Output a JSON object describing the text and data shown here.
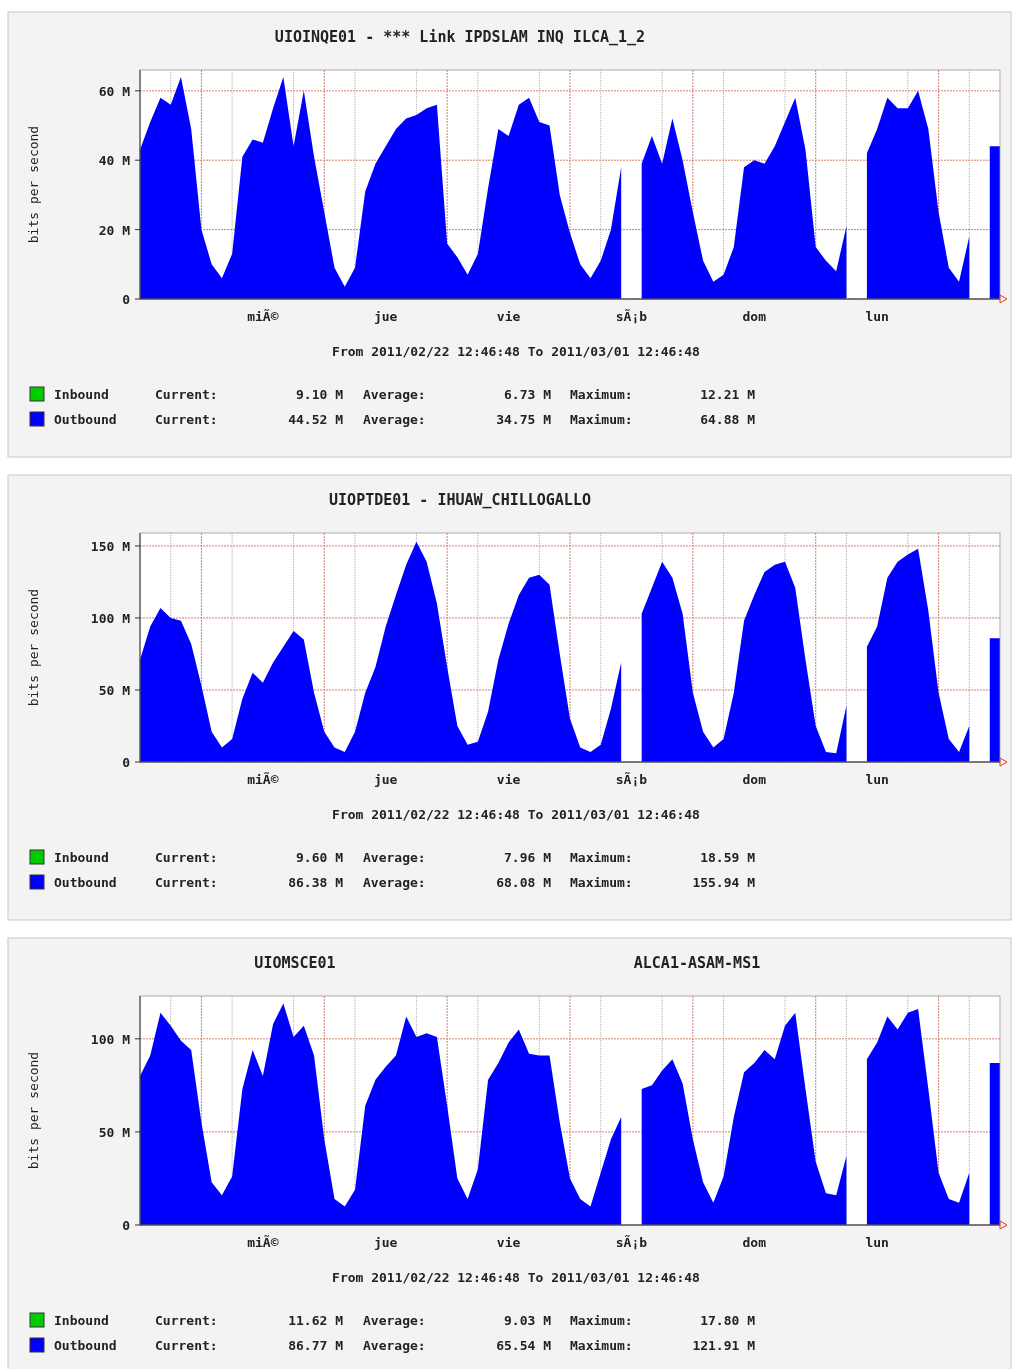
{
  "chart_data": [
    {
      "type": "area",
      "title": "UIOINQE01 - *** Link IPDSLAM INQ ILCA_1_2",
      "ylabel": "bits per second",
      "ylim": [
        0,
        66
      ],
      "categories": [
        null,
        null,
        null,
        null,
        null,
        null,
        null,
        null,
        null,
        null,
        null,
        null,
        "miÃ©",
        null,
        null,
        null,
        null,
        null,
        null,
        null,
        null,
        null,
        null,
        null,
        "jue",
        null,
        null,
        null,
        null,
        null,
        null,
        null,
        null,
        null,
        null,
        null,
        "vie",
        null,
        null,
        null,
        null,
        null,
        null,
        null,
        null,
        null,
        null,
        null,
        "sÃ¡b",
        null,
        null,
        null,
        null,
        null,
        null,
        null,
        null,
        null,
        null,
        null,
        "dom",
        null,
        null,
        null,
        null,
        null,
        null,
        null,
        null,
        null,
        null,
        null,
        "lun",
        null,
        null,
        null,
        null,
        null,
        null,
        null,
        null,
        null,
        null,
        null,
        null
      ],
      "yticks": [
        {
          "value": 0,
          "label": "0"
        },
        {
          "value": 20,
          "label": "20 M"
        },
        {
          "value": 40,
          "label": "40 M"
        },
        {
          "value": 60,
          "label": "60 M"
        }
      ],
      "grid": true,
      "legend": "bottom",
      "series": [
        {
          "name": "Inbound",
          "color": "#00cc00",
          "values": [
            null,
            null,
            null,
            null,
            null,
            null,
            null,
            null,
            null,
            null,
            null,
            null,
            null,
            null,
            null,
            null,
            null,
            null,
            null,
            null,
            null,
            null,
            null,
            null,
            null,
            null,
            null,
            null,
            null,
            null,
            null,
            null,
            null,
            null,
            null,
            null,
            null,
            null,
            null,
            null,
            null,
            null,
            null,
            null,
            null,
            null,
            null,
            null,
            null,
            null,
            null,
            null,
            null,
            null,
            null,
            null,
            null,
            null,
            null,
            null,
            null,
            null,
            null,
            null,
            null,
            null,
            null,
            null,
            null,
            null,
            null,
            null,
            null,
            null,
            null,
            null,
            null,
            null,
            null,
            null,
            null,
            null,
            null,
            null,
            null
          ]
        },
        {
          "name": "Outbound",
          "color": "#0000ff",
          "values": [
            43,
            51,
            58,
            56,
            64,
            49,
            20,
            10,
            6,
            13,
            41,
            46,
            45,
            55,
            64,
            44,
            60,
            41,
            25,
            9,
            3.5,
            9,
            31,
            39,
            44,
            49,
            52,
            53,
            55,
            56,
            16,
            12,
            7,
            13,
            32,
            49,
            47,
            56,
            58,
            51,
            50,
            30,
            19,
            10,
            6,
            11,
            20,
            38,
            null,
            39,
            47,
            39,
            52,
            40,
            25,
            11,
            5,
            7,
            15,
            38,
            40,
            39,
            44,
            51,
            58,
            43,
            15,
            11,
            8,
            21,
            null,
            42,
            49,
            58,
            55,
            55,
            60,
            49,
            25,
            9,
            5,
            18,
            null,
            44,
            44
          ]
        }
      ],
      "annotations": [
        "From 2011/02/22 12:46:48 To 2011/03/01 12:46:48",
        "Current:",
        "9.10 M",
        "Average:",
        "6.73 M",
        "Maximum:",
        "12.21 M",
        "Current:",
        "44.52 M",
        "Average:",
        "34.75 M",
        "Maximum:",
        "64.88 M"
      ]
    },
    {
      "type": "area",
      "title": "UIOPTDE01 - IHUAW_CHILLOGALLO",
      "ylabel": "bits per second",
      "ylim": [
        0,
        159
      ],
      "categories": [
        null,
        null,
        null,
        null,
        null,
        null,
        null,
        null,
        null,
        null,
        null,
        null,
        "miÃ©",
        null,
        null,
        null,
        null,
        null,
        null,
        null,
        null,
        null,
        null,
        null,
        "jue",
        null,
        null,
        null,
        null,
        null,
        null,
        null,
        null,
        null,
        null,
        null,
        "vie",
        null,
        null,
        null,
        null,
        null,
        null,
        null,
        null,
        null,
        null,
        null,
        "sÃ¡b",
        null,
        null,
        null,
        null,
        null,
        null,
        null,
        null,
        null,
        null,
        null,
        "dom",
        null,
        null,
        null,
        null,
        null,
        null,
        null,
        null,
        null,
        null,
        null,
        "lun",
        null,
        null,
        null,
        null,
        null,
        null,
        null,
        null,
        null,
        null,
        null,
        null
      ],
      "yticks": [
        {
          "value": 0,
          "label": "0"
        },
        {
          "value": 50,
          "label": "50 M"
        },
        {
          "value": 100,
          "label": "100 M"
        },
        {
          "value": 150,
          "label": "150 M"
        }
      ],
      "grid": true,
      "legend": "bottom",
      "series": [
        {
          "name": "Inbound",
          "color": "#00cc00",
          "values": [
            null,
            null,
            null,
            null,
            null,
            null,
            null,
            null,
            null,
            null,
            null,
            null,
            null,
            null,
            null,
            null,
            null,
            null,
            null,
            null,
            null,
            null,
            null,
            null,
            null,
            null,
            null,
            null,
            null,
            null,
            null,
            null,
            null,
            null,
            null,
            null,
            null,
            null,
            null,
            null,
            null,
            null,
            null,
            null,
            null,
            null,
            null,
            null,
            null,
            null,
            null,
            null,
            null,
            null,
            null,
            null,
            null,
            null,
            null,
            null,
            null,
            null,
            null,
            null,
            null,
            null,
            null,
            null,
            null,
            null,
            null,
            null,
            null,
            null,
            null,
            null,
            null,
            null,
            null,
            null,
            null,
            null,
            null,
            null,
            null
          ]
        },
        {
          "name": "Outbound",
          "color": "#0000ff",
          "values": [
            71,
            94,
            107,
            100,
            98,
            82,
            53,
            21,
            10,
            16,
            44,
            62,
            55,
            69,
            80,
            91,
            85,
            48,
            21,
            10,
            7,
            21,
            48,
            66,
            94,
            116,
            137,
            153,
            139,
            110,
            66,
            25,
            12,
            14,
            35,
            71,
            96,
            116,
            128,
            130,
            123,
            75,
            30,
            10,
            7,
            12,
            37,
            69,
            null,
            103,
            121,
            139,
            128,
            103,
            48,
            21,
            10,
            16,
            48,
            98,
            116,
            132,
            137,
            139,
            121,
            71,
            25,
            7,
            6,
            39,
            null,
            80,
            94,
            128,
            139,
            144,
            148,
            105,
            48,
            16,
            7,
            25,
            null,
            86,
            86
          ]
        }
      ],
      "annotations": [
        "From 2011/02/22 12:46:48 To 2011/03/01 12:46:48",
        "Current:",
        "9.60 M",
        "Average:",
        "7.96 M",
        "Maximum:",
        "18.59 M",
        "Current:",
        "86.38 M",
        "Average:",
        "68.08 M",
        "Maximum:",
        "155.94 M"
      ]
    },
    {
      "type": "area",
      "title": "UIOMSCE01",
      "subtitle": "ALCA1-ASAM-MS1",
      "ylabel": "bits per second",
      "ylim": [
        0,
        123
      ],
      "categories": [
        null,
        null,
        null,
        null,
        null,
        null,
        null,
        null,
        null,
        null,
        null,
        null,
        "miÃ©",
        null,
        null,
        null,
        null,
        null,
        null,
        null,
        null,
        null,
        null,
        null,
        "jue",
        null,
        null,
        null,
        null,
        null,
        null,
        null,
        null,
        null,
        null,
        null,
        "vie",
        null,
        null,
        null,
        null,
        null,
        null,
        null,
        null,
        null,
        null,
        null,
        "sÃ¡b",
        null,
        null,
        null,
        null,
        null,
        null,
        null,
        null,
        null,
        null,
        null,
        "dom",
        null,
        null,
        null,
        null,
        null,
        null,
        null,
        null,
        null,
        null,
        null,
        "lun",
        null,
        null,
        null,
        null,
        null,
        null,
        null,
        null,
        null,
        null,
        null,
        null
      ],
      "yticks": [
        {
          "value": 0,
          "label": "0"
        },
        {
          "value": 50,
          "label": "50 M"
        },
        {
          "value": 100,
          "label": "100 M"
        }
      ],
      "grid": true,
      "legend": "bottom",
      "series": [
        {
          "name": "Inbound",
          "color": "#00cc00",
          "values": [
            null,
            null,
            null,
            null,
            null,
            null,
            null,
            null,
            null,
            null,
            null,
            null,
            null,
            null,
            null,
            null,
            null,
            null,
            null,
            null,
            null,
            null,
            null,
            null,
            null,
            null,
            null,
            null,
            null,
            null,
            null,
            null,
            null,
            null,
            null,
            null,
            null,
            null,
            null,
            null,
            null,
            null,
            null,
            null,
            null,
            null,
            null,
            null,
            null,
            null,
            null,
            null,
            null,
            null,
            null,
            null,
            null,
            null,
            null,
            null,
            null,
            null,
            null,
            null,
            null,
            null,
            null,
            null,
            null,
            null,
            null,
            null,
            null,
            null,
            null,
            null,
            null,
            null,
            null,
            null,
            null,
            null,
            null,
            null,
            null
          ]
        },
        {
          "name": "Outbound",
          "color": "#0000ff",
          "values": [
            80,
            91,
            114,
            107,
            99,
            94,
            55,
            23,
            16,
            26,
            73,
            94,
            80,
            108,
            119,
            101,
            107,
            91,
            46,
            14,
            10,
            19,
            64,
            78,
            85,
            91,
            112,
            101,
            103,
            101,
            64,
            25,
            14,
            30,
            78,
            87,
            98,
            105,
            92,
            91,
            91,
            55,
            25,
            14,
            10,
            28,
            46,
            58,
            null,
            73,
            75,
            83,
            89,
            76,
            46,
            23,
            12,
            26,
            58,
            82,
            87,
            94,
            89,
            107,
            114,
            73,
            34,
            17,
            16,
            37,
            null,
            89,
            98,
            112,
            105,
            114,
            116,
            73,
            28,
            14,
            12,
            28,
            null,
            87,
            87
          ]
        }
      ],
      "annotations": [
        "From 2011/02/22 12:46:48 To 2011/03/01 12:46:48",
        "Current:",
        "11.62 M",
        "Average:",
        "9.03 M",
        "Maximum:",
        "17.80 M",
        "Current:",
        "86.77 M",
        "Average:",
        "65.54 M",
        "Maximum:",
        "121.91 M"
      ]
    }
  ]
}
